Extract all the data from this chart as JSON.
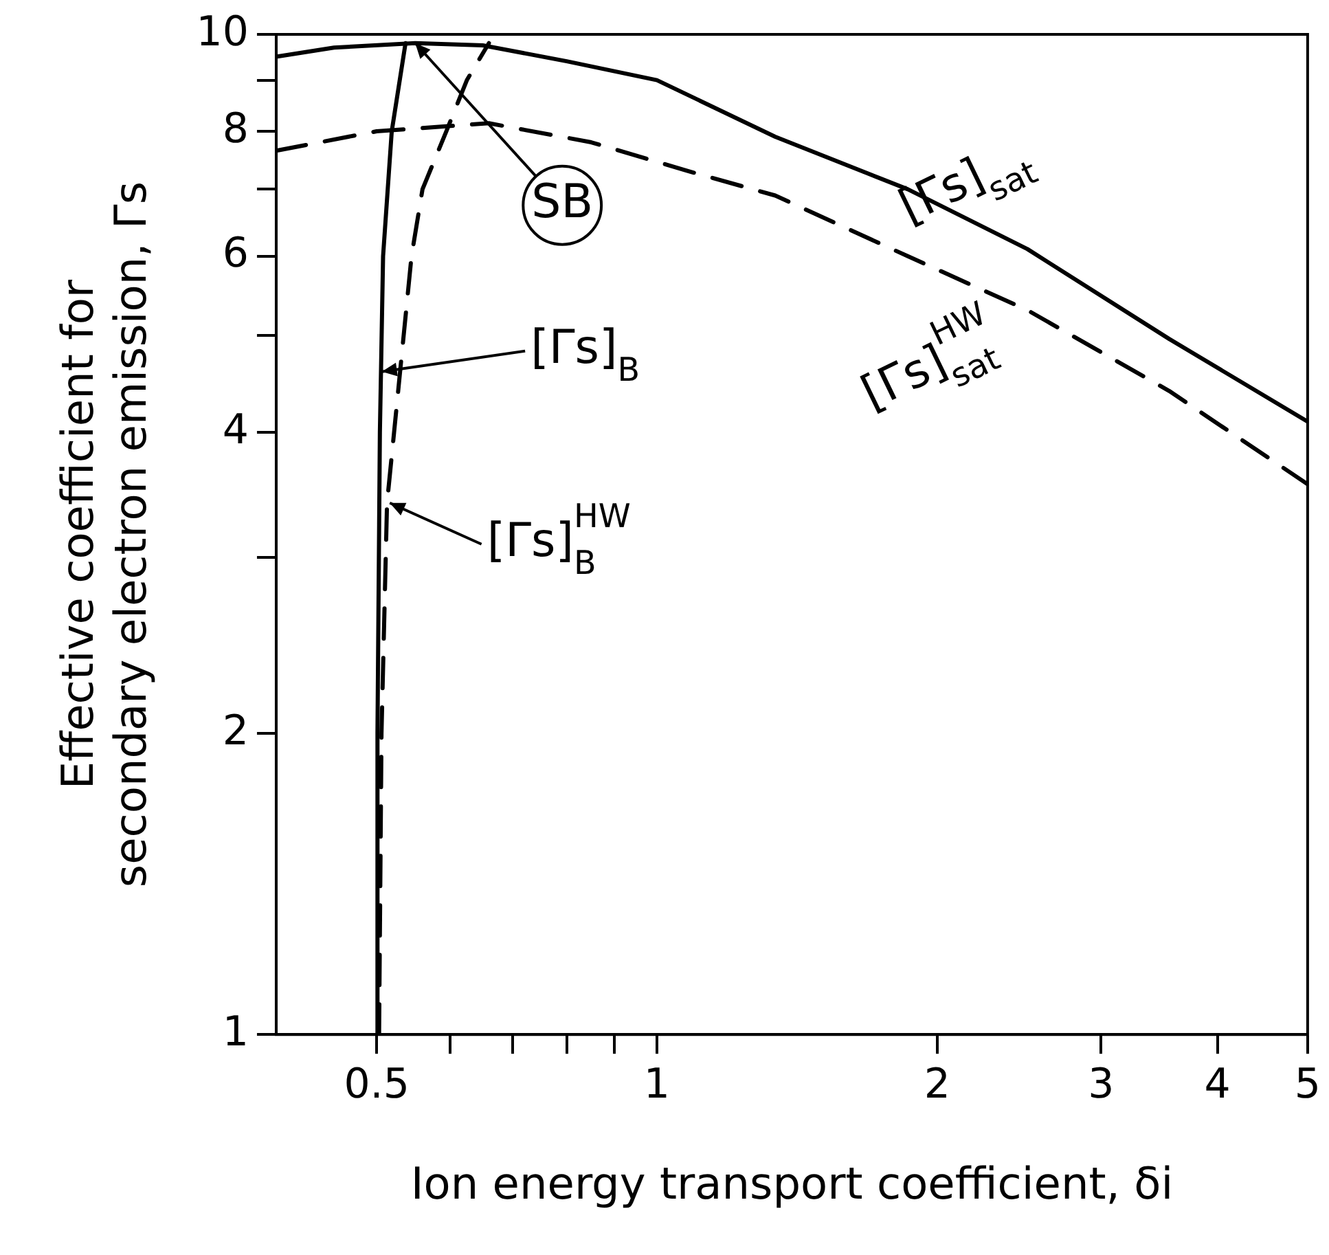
{
  "chart_data": {
    "type": "line",
    "xlabel": "Ion energy transport coefficient, δi",
    "ylabel": "Effective coefficient for secondary electron emission, Γs",
    "log": "xy",
    "xlim": [
      0.39,
      5
    ],
    "ylim": [
      1,
      10
    ],
    "xticks": [
      0.5,
      {
        "value": 0.6,
        "label": null
      },
      {
        "value": 0.7,
        "label": null
      },
      {
        "value": 0.8,
        "label": null
      },
      {
        "value": 0.9,
        "label": null
      },
      1,
      2,
      3,
      4,
      5
    ],
    "yticks": [
      1,
      2,
      {
        "value": 3,
        "label": null
      },
      4,
      {
        "value": 5,
        "label": null
      },
      6,
      {
        "value": 7,
        "label": null
      },
      8,
      {
        "value": 9,
        "label": null
      },
      10
    ],
    "grid": false,
    "legend": false,
    "marker": "none",
    "series": [
      {
        "color": "#000000",
        "line_style": "solid",
        "x": [
          0.39,
          0.45,
          0.55,
          0.65,
          0.8,
          1.0,
          1.34,
          1.86,
          2.5,
          3.55,
          5
        ],
        "values": [
          9.5,
          9.7,
          9.8,
          9.75,
          9.4,
          9.0,
          7.9,
          7.0,
          6.1,
          4.96,
          4.1
        ]
      },
      {
        "color": "#000000",
        "line_style": "dashed",
        "x": [
          0.39,
          0.5,
          0.66,
          0.85,
          1.08,
          1.34,
          1.86,
          2.5,
          3.55,
          5
        ],
        "values": [
          7.65,
          8.0,
          8.15,
          7.8,
          7.3,
          6.9,
          6.0,
          5.3,
          4.4,
          3.55
        ]
      },
      {
        "color": "#000000",
        "line_style": "solid",
        "x": [
          0.5,
          0.501,
          0.504,
          0.508,
          0.519,
          0.537
        ],
        "values": [
          1,
          2,
          4,
          6,
          8,
          9.8
        ]
      },
      {
        "color": "#000000",
        "line_style": "dashed",
        "x": [
          0.503,
          0.506,
          0.513,
          0.522,
          0.545,
          0.56,
          0.594,
          0.625,
          0.66
        ],
        "values": [
          1,
          2,
          3.4,
          4,
          6,
          7,
          8,
          9,
          9.8
        ]
      }
    ],
    "annotations": [
      {
        "text": "[Γs]$_{sat}$",
        "x": 2.5,
        "y": 6.1
      },
      {
        "text": "[Γs]$^{HW}$$_{sat}$",
        "x": 2.5,
        "y": 5.3
      },
      {
        "text": "[Γs]$_{B}$",
        "x": 0.503,
        "y": 4.6
      },
      {
        "text": "[Γs]$^{HW}$$_{B}$",
        "x": 0.513,
        "y": 3.4
      },
      {
        "text": "SB",
        "x": 0.55,
        "y": 9.8
      }
    ]
  }
}
